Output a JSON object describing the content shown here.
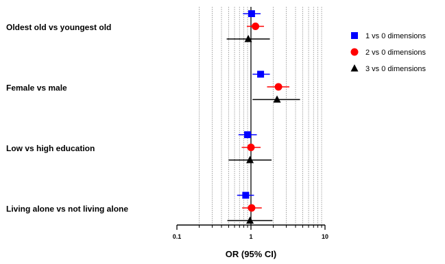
{
  "chart_data": {
    "type": "scatter",
    "subtype": "forest-plot",
    "title": "",
    "xlabel": "OR (95% CI)",
    "ylabel": "",
    "x_scale": "log",
    "xlim": [
      0.1,
      10
    ],
    "x_ticks": [
      0.1,
      1,
      10
    ],
    "x_tick_labels": [
      "0.1",
      "1",
      "10"
    ],
    "grid": "vertical dotted lines at minor log ticks",
    "reference_line": 1,
    "legend_position": "right",
    "categories": [
      "Oldest old vs youngest old",
      "Female vs male",
      "Low vs high education",
      "Living alone vs not living alone"
    ],
    "series": [
      {
        "name": "1 vs 0 dimensions",
        "color": "#0000ff",
        "marker": "square",
        "or": [
          1.02,
          1.35,
          0.9,
          0.85
        ],
        "ci_low": [
          0.78,
          1.05,
          0.68,
          0.65
        ],
        "ci_high": [
          1.35,
          1.8,
          1.2,
          1.1
        ]
      },
      {
        "name": "2 vs 0 dimensions",
        "color": "#ff0000",
        "marker": "circle",
        "or": [
          1.15,
          2.35,
          1.0,
          1.02
        ],
        "ci_low": [
          0.88,
          1.65,
          0.75,
          0.76
        ],
        "ci_high": [
          1.5,
          3.3,
          1.35,
          1.4
        ]
      },
      {
        "name": "3 vs 0 dimensions",
        "color": "#000000",
        "marker": "triangle",
        "or": [
          0.92,
          2.25,
          0.97,
          0.97
        ],
        "ci_low": [
          0.47,
          1.05,
          0.5,
          0.48
        ],
        "ci_high": [
          1.8,
          4.6,
          1.9,
          1.95
        ]
      }
    ]
  }
}
